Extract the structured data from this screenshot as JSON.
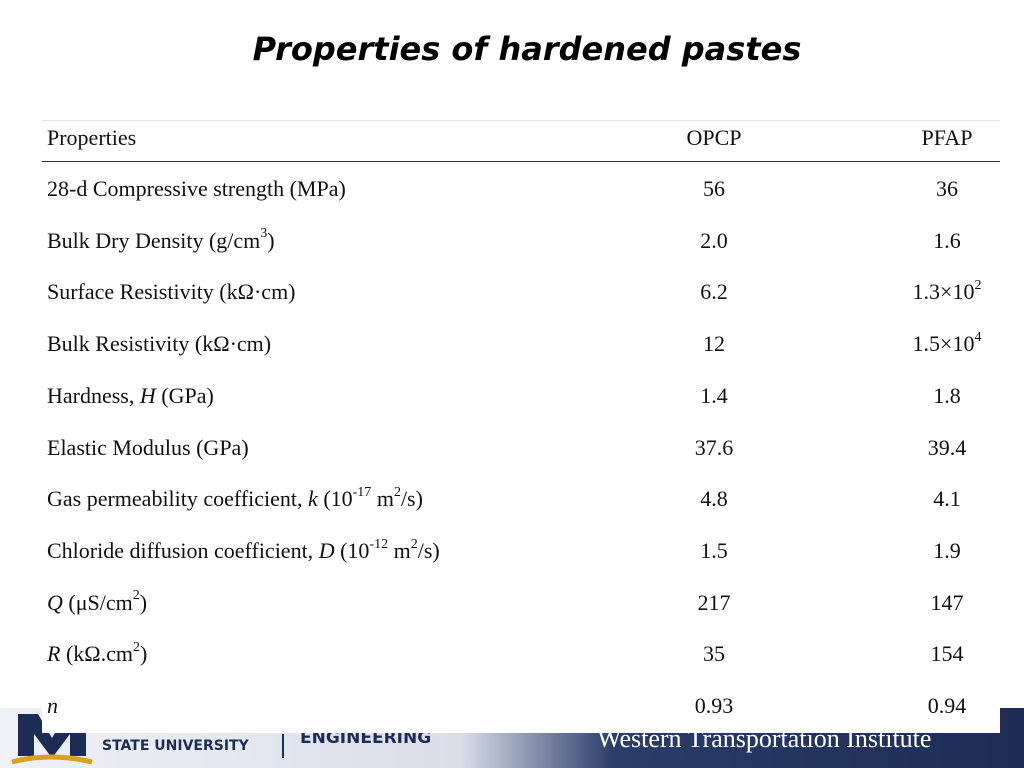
{
  "title": "Properties of hardened pastes",
  "table": {
    "header": [
      "Properties",
      "OPCP",
      "PFAP"
    ],
    "rows": [
      [
        "28-d Compressive strength (MPa)",
        "56",
        "36"
      ],
      [
        [
          {
            "text": "Bulk Dry Density (g/cm"
          },
          {
            "text": "3",
            "sup": true
          },
          {
            "text": ")"
          }
        ],
        "2.0",
        "1.6"
      ],
      [
        "Surface Resistivity (kΩ·cm)",
        "6.2",
        [
          {
            "text": "1.3×10"
          },
          {
            "text": "2",
            "sup": true
          }
        ]
      ],
      [
        "Bulk Resistivity (kΩ·cm)",
        "12",
        [
          {
            "text": "1.5×10"
          },
          {
            "text": "4",
            "sup": true
          }
        ]
      ],
      [
        [
          {
            "text": "Hardness, "
          },
          {
            "text": "H",
            "italic": true
          },
          {
            "text": " (GPa)"
          }
        ],
        "1.4",
        "1.8"
      ],
      [
        "Elastic Modulus (GPa)",
        "37.6",
        "39.4"
      ],
      [
        [
          {
            "text": "Gas permeability coefficient, "
          },
          {
            "text": "k",
            "italic": true
          },
          {
            "text": " (10"
          },
          {
            "text": "-17",
            "sup": true
          },
          {
            "text": " m"
          },
          {
            "text": "2",
            "sup": true
          },
          {
            "text": "/s)"
          }
        ],
        "4.8",
        "4.1"
      ],
      [
        [
          {
            "text": "Chloride diffusion coefficient, "
          },
          {
            "text": "D",
            "italic": true
          },
          {
            "text": " (10"
          },
          {
            "text": "-12",
            "sup": true
          },
          {
            "text": " m"
          },
          {
            "text": "2",
            "sup": true
          },
          {
            "text": "/s)"
          }
        ],
        "1.5",
        "1.9"
      ],
      [
        [
          {
            "text": "Q",
            "italic": true
          },
          {
            "text": " (μS/cm"
          },
          {
            "text": "2",
            "sup": true
          },
          {
            "text": ")"
          }
        ],
        "217",
        "147"
      ],
      [
        [
          {
            "text": "R",
            "italic": true
          },
          {
            "text": " (kΩ.cm"
          },
          {
            "text": "2",
            "sup": true
          },
          {
            "text": ")"
          }
        ],
        "35",
        "154"
      ],
      [
        [
          {
            "text": "n",
            "italic": true
          }
        ],
        "0.93",
        "0.94"
      ]
    ]
  },
  "footer": {
    "university": "STATE UNIVERSITY",
    "college": "ENGINEERING",
    "institute": "Western Transportation Institute"
  }
}
